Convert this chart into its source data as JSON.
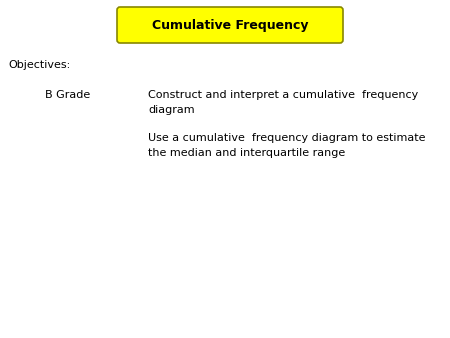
{
  "title": "Cumulative Frequency",
  "title_bg": "#ffff00",
  "title_border": "#888800",
  "title_text_color": "#000000",
  "background_color": "#ffffff",
  "objectives_label": "Objectives:",
  "grade_label": "B Grade",
  "bullet1_line1": "Construct and interpret a cumulative  frequency",
  "bullet1_line2": "diagram",
  "bullet2_line1": "Use a cumulative  frequency diagram to estimate",
  "bullet2_line2": "the median and interquartile range",
  "font_size_title": 9,
  "font_size_body": 8,
  "font_family": "DejaVu Sans"
}
